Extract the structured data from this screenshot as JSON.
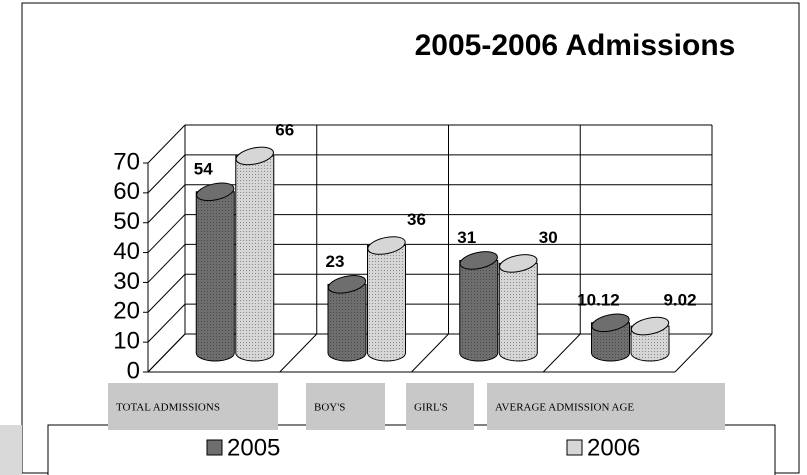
{
  "chart_data": {
    "type": "bar3d",
    "title": "2005-2006 Admissions",
    "categories": [
      "TOTAL  ADMISSIONS",
      "BOY'S",
      "GIRL'S",
      "AVERAGE ADMISSION AGE"
    ],
    "series": [
      {
        "name": "2005",
        "color": "#6e6e6e",
        "values": [
          54,
          23,
          31,
          10.12
        ]
      },
      {
        "name": "2006",
        "color": "#d6d6d6",
        "values": [
          66,
          36,
          30,
          9.02
        ]
      }
    ],
    "ylim": [
      0,
      70
    ],
    "yticks": [
      0,
      10,
      20,
      30,
      40,
      50,
      60,
      70
    ],
    "grid": true,
    "legend": "bottom"
  }
}
